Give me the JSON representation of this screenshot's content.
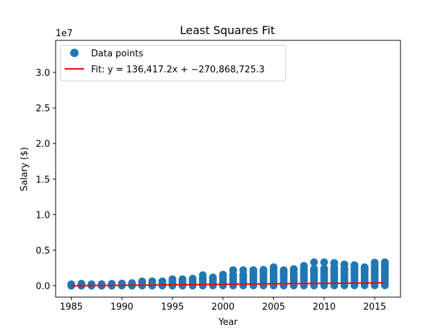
{
  "chart_data": {
    "type": "scatter",
    "title": "Least Squares Fit",
    "xlabel": "Year",
    "ylabel": "Salary ($)",
    "y_offset_label": "1e7",
    "xlim": [
      1983.45,
      2017.55
    ],
    "ylim": [
      -1.6,
      34.5
    ],
    "y_scale": 10000000,
    "xticks": [
      1985,
      1990,
      1995,
      2000,
      2005,
      2010,
      2015
    ],
    "xtick_labels": [
      "1985",
      "1990",
      "1995",
      "2000",
      "2005",
      "2010",
      "2015"
    ],
    "yticks": [
      0,
      5,
      10,
      15,
      20,
      25,
      30
    ],
    "ytick_labels": [
      "0.0",
      "0.5",
      "1.0",
      "1.5",
      "2.0",
      "2.5",
      "3.0"
    ],
    "grid": false,
    "legend_position": "top-left",
    "legend": {
      "points_label": "Data points",
      "fit_label": "Fit: y = 136,417.2x + −270,868,725.3"
    },
    "colors": {
      "points": "#1f77b4",
      "fit": "#ff0000"
    },
    "fit": {
      "slope": 136417.2,
      "intercept": -270868725.3,
      "x_range": [
        1985,
        2016
      ]
    },
    "series": [
      {
        "name": "Data points",
        "note_units": "y values in millions of dollars; each column lists [min, max] of dense range plus individual sparse outliers",
        "columns": [
          {
            "x": 1985,
            "min": 0.06,
            "max": 1.9,
            "outliers": [
              2.1
            ]
          },
          {
            "x": 1986,
            "min": 0.06,
            "max": 2.0,
            "outliers": [
              2.8
            ]
          },
          {
            "x": 1987,
            "min": 0.06,
            "max": 1.9,
            "outliers": [
              2.1
            ]
          },
          {
            "x": 1988,
            "min": 0.06,
            "max": 2.0,
            "outliers": [
              2.3
            ]
          },
          {
            "x": 1989,
            "min": 0.06,
            "max": 2.5,
            "outliers": [
              2.9
            ]
          },
          {
            "x": 1990,
            "min": 0.1,
            "max": 2.8,
            "outliers": [
              3.2
            ]
          },
          {
            "x": 1991,
            "min": 0.1,
            "max": 3.4,
            "outliers": [
              3.8
            ]
          },
          {
            "x": 1992,
            "min": 0.1,
            "max": 5.5,
            "outliers": [
              6.1
            ]
          },
          {
            "x": 1993,
            "min": 0.1,
            "max": 5.8,
            "outliers": [
              6.2
            ]
          },
          {
            "x": 1994,
            "min": 0.1,
            "max": 5.9,
            "outliers": [
              6.3
            ]
          },
          {
            "x": 1995,
            "min": 0.1,
            "max": 7.0,
            "outliers": [
              9.2
            ]
          },
          {
            "x": 1996,
            "min": 0.1,
            "max": 8.0,
            "outliers": [
              9.2
            ]
          },
          {
            "x": 1997,
            "min": 0.15,
            "max": 9.0,
            "outliers": [
              10.0
            ]
          },
          {
            "x": 1998,
            "min": 0.15,
            "max": 9.5,
            "outliers": [
              10.0,
              14.9
            ]
          },
          {
            "x": 1999,
            "min": 0.2,
            "max": 10.5,
            "outliers": [
              11.9
            ]
          },
          {
            "x": 2000,
            "min": 0.2,
            "max": 13.0,
            "outliers": [
              15.7
            ]
          },
          {
            "x": 2001,
            "min": 0.2,
            "max": 13.5,
            "outliers": [
              15.7,
              22.0
            ]
          },
          {
            "x": 2002,
            "min": 0.2,
            "max": 14.5,
            "outliers": [
              15.7
            ]
          },
          {
            "x": 2003,
            "min": 0.3,
            "max": 16.0,
            "outliers": [
              19.3,
              22.0
            ]
          },
          {
            "x": 2004,
            "min": 0.3,
            "max": 16.5,
            "outliers": [
              18.8,
              20.4,
              22.0
            ]
          },
          {
            "x": 2005,
            "min": 0.3,
            "max": 17.5,
            "outliers": [
              20.0,
              22.5
            ]
          },
          {
            "x": 2006,
            "min": 0.3,
            "max": 17.0,
            "outliers": [
              18.8,
              20.0,
              22.0
            ]
          },
          {
            "x": 2007,
            "min": 0.38,
            "max": 17.0,
            "outliers": [
              22.0
            ]
          },
          {
            "x": 2008,
            "min": 0.38,
            "max": 17.0,
            "outliers": [
              21.6
            ]
          },
          {
            "x": 2009,
            "min": 0.38,
            "max": 17.0,
            "outliers": [
              23.8
            ]
          },
          {
            "x": 2010,
            "min": 0.4,
            "max": 17.5,
            "outliers": [
              24.2
            ]
          },
          {
            "x": 2011,
            "min": 0.4,
            "max": 17.5,
            "outliers": [
              26.1,
              32.0
            ]
          },
          {
            "x": 2012,
            "min": 0.48,
            "max": 18.0,
            "outliers": [
              24.2,
              30.0
            ]
          },
          {
            "x": 2013,
            "min": 0.48,
            "max": 18.5,
            "outliers": [
              24.9,
              29.0
            ]
          },
          {
            "x": 2014,
            "min": 0.5,
            "max": 19.0,
            "outliers": [
              26.0
            ]
          },
          {
            "x": 2015,
            "min": 0.5,
            "max": 22.0,
            "outliers": [
              28.0,
              32.5
            ]
          },
          {
            "x": 2016,
            "min": 0.5,
            "max": 24.0,
            "outliers": [
              26.0,
              28.0,
              30.0,
              31.7,
              33.0
            ]
          }
        ],
        "extra_points": [
          [
            1986,
            2.8
          ],
          [
            2001,
            22.0
          ],
          [
            2002,
            22.0
          ],
          [
            2003,
            22.0
          ],
          [
            2004,
            22.5
          ],
          [
            2004,
            20.5
          ],
          [
            2005,
            26.0
          ],
          [
            2005,
            26.1
          ],
          [
            2006,
            21.7
          ],
          [
            2006,
            19.8
          ],
          [
            2007,
            23.0
          ],
          [
            2007,
            23.5
          ],
          [
            2007,
            21.9
          ],
          [
            2008,
            28.0
          ],
          [
            2008,
            23.5
          ],
          [
            2008,
            19.0
          ],
          [
            2009,
            33.0
          ],
          [
            2009,
            22.0
          ],
          [
            2009,
            20.5
          ],
          [
            2010,
            33.0
          ],
          [
            2010,
            22.5
          ],
          [
            2010,
            21.2
          ],
          [
            2011,
            32.0
          ],
          [
            2011,
            24.0
          ],
          [
            2011,
            22.2
          ],
          [
            2011,
            21.0
          ],
          [
            2012,
            30.0
          ],
          [
            2012,
            23.0
          ],
          [
            2012,
            21.8
          ],
          [
            2012,
            20.2
          ],
          [
            2013,
            29.0
          ],
          [
            2013,
            24.2
          ],
          [
            2013,
            22.8
          ],
          [
            2013,
            21.2
          ],
          [
            2014,
            26.0
          ],
          [
            2014,
            24.8
          ],
          [
            2014,
            23.4
          ],
          [
            2014,
            22.2
          ],
          [
            2014,
            20.5
          ],
          [
            2015,
            32.5
          ],
          [
            2015,
            28.0
          ],
          [
            2015,
            25.0
          ],
          [
            2015,
            23.8
          ],
          [
            2015,
            22.8
          ],
          [
            2016,
            33.0
          ],
          [
            2016,
            31.7
          ],
          [
            2016,
            30.0
          ],
          [
            2016,
            28.0
          ],
          [
            2016,
            26.0
          ],
          [
            2016,
            25.0
          ]
        ]
      }
    ]
  }
}
